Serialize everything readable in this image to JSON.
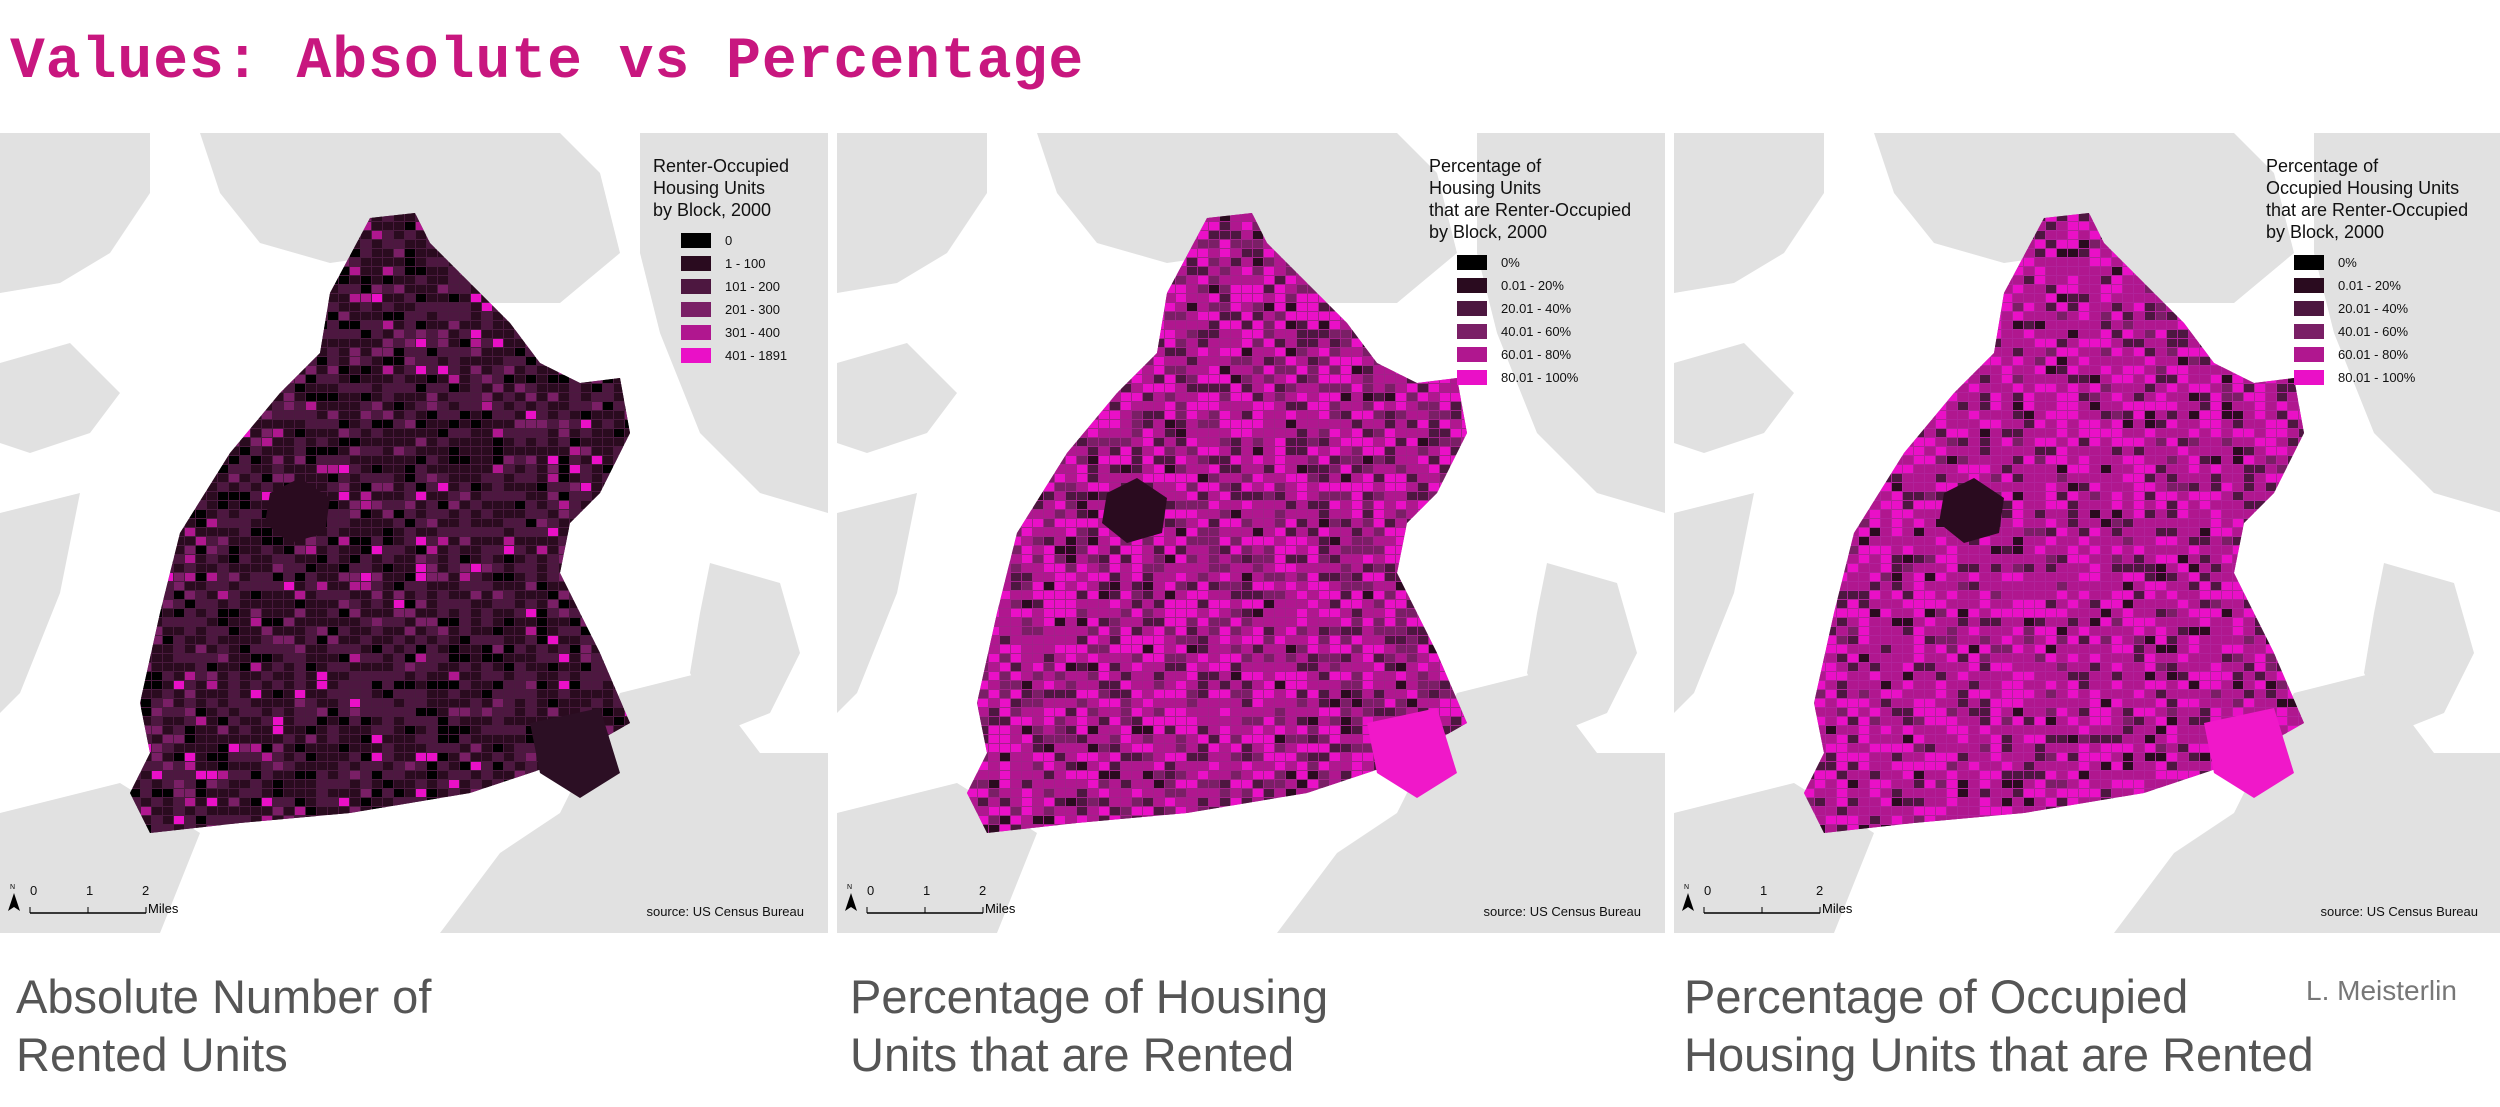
{
  "title": "Values: Absolute vs Percentage",
  "colors": {
    "water": "#ffffff",
    "land": "#e1e1e1",
    "accent": "#c8177f",
    "ramp": [
      "#000000",
      "#2a0b1f",
      "#4d1740",
      "#7a1f66",
      "#b0178f",
      "#ea10c7"
    ]
  },
  "panels": [
    {
      "legend_title": "Renter-Occupied\nHousing Units\nby Block, 2000",
      "legend_items": [
        "0",
        "1 - 100",
        "101 - 200",
        "201 - 300",
        "301 - 400",
        "401 - 1891"
      ],
      "scale": [
        "0",
        "1",
        "2"
      ],
      "scale_unit": "Miles",
      "north": "N",
      "source": "source: US Census Bureau",
      "caption": "Absolute Number of\nRented Units",
      "fill": "#4a1a3e",
      "feature_fill": "#2c0f24"
    },
    {
      "legend_title": "Percentage of\nHousing Units\nthat are Renter-Occupied\nby Block, 2000",
      "legend_items": [
        "0%",
        "0.01 - 20%",
        "20.01 - 40%",
        "40.01 - 60%",
        "60.01 - 80%",
        "80.01 - 100%"
      ],
      "scale": [
        "0",
        "1",
        "2"
      ],
      "scale_unit": "Miles",
      "north": "N",
      "source": "source: US Census Bureau",
      "caption": "Percentage of Housing\nUnits that are Rented",
      "fill": "#a3218a",
      "feature_fill": "#f018c9"
    },
    {
      "legend_title": "Percentage of\nOccupied Housing Units\nthat are Renter-Occupied\nby Block, 2000",
      "legend_items": [
        "0%",
        "0.01 - 20%",
        "20.01 - 40%",
        "40.01 - 60%",
        "60.01 - 80%",
        "80.01 - 100%"
      ],
      "scale": [
        "0",
        "1",
        "2"
      ],
      "scale_unit": "Miles",
      "north": "N",
      "source": "source: US Census Bureau",
      "caption": "Percentage of Occupied\nHousing Units that are Rented",
      "fill": "#b1229a",
      "feature_fill": "#f018c9"
    }
  ],
  "credit": "L. Meisterlin"
}
